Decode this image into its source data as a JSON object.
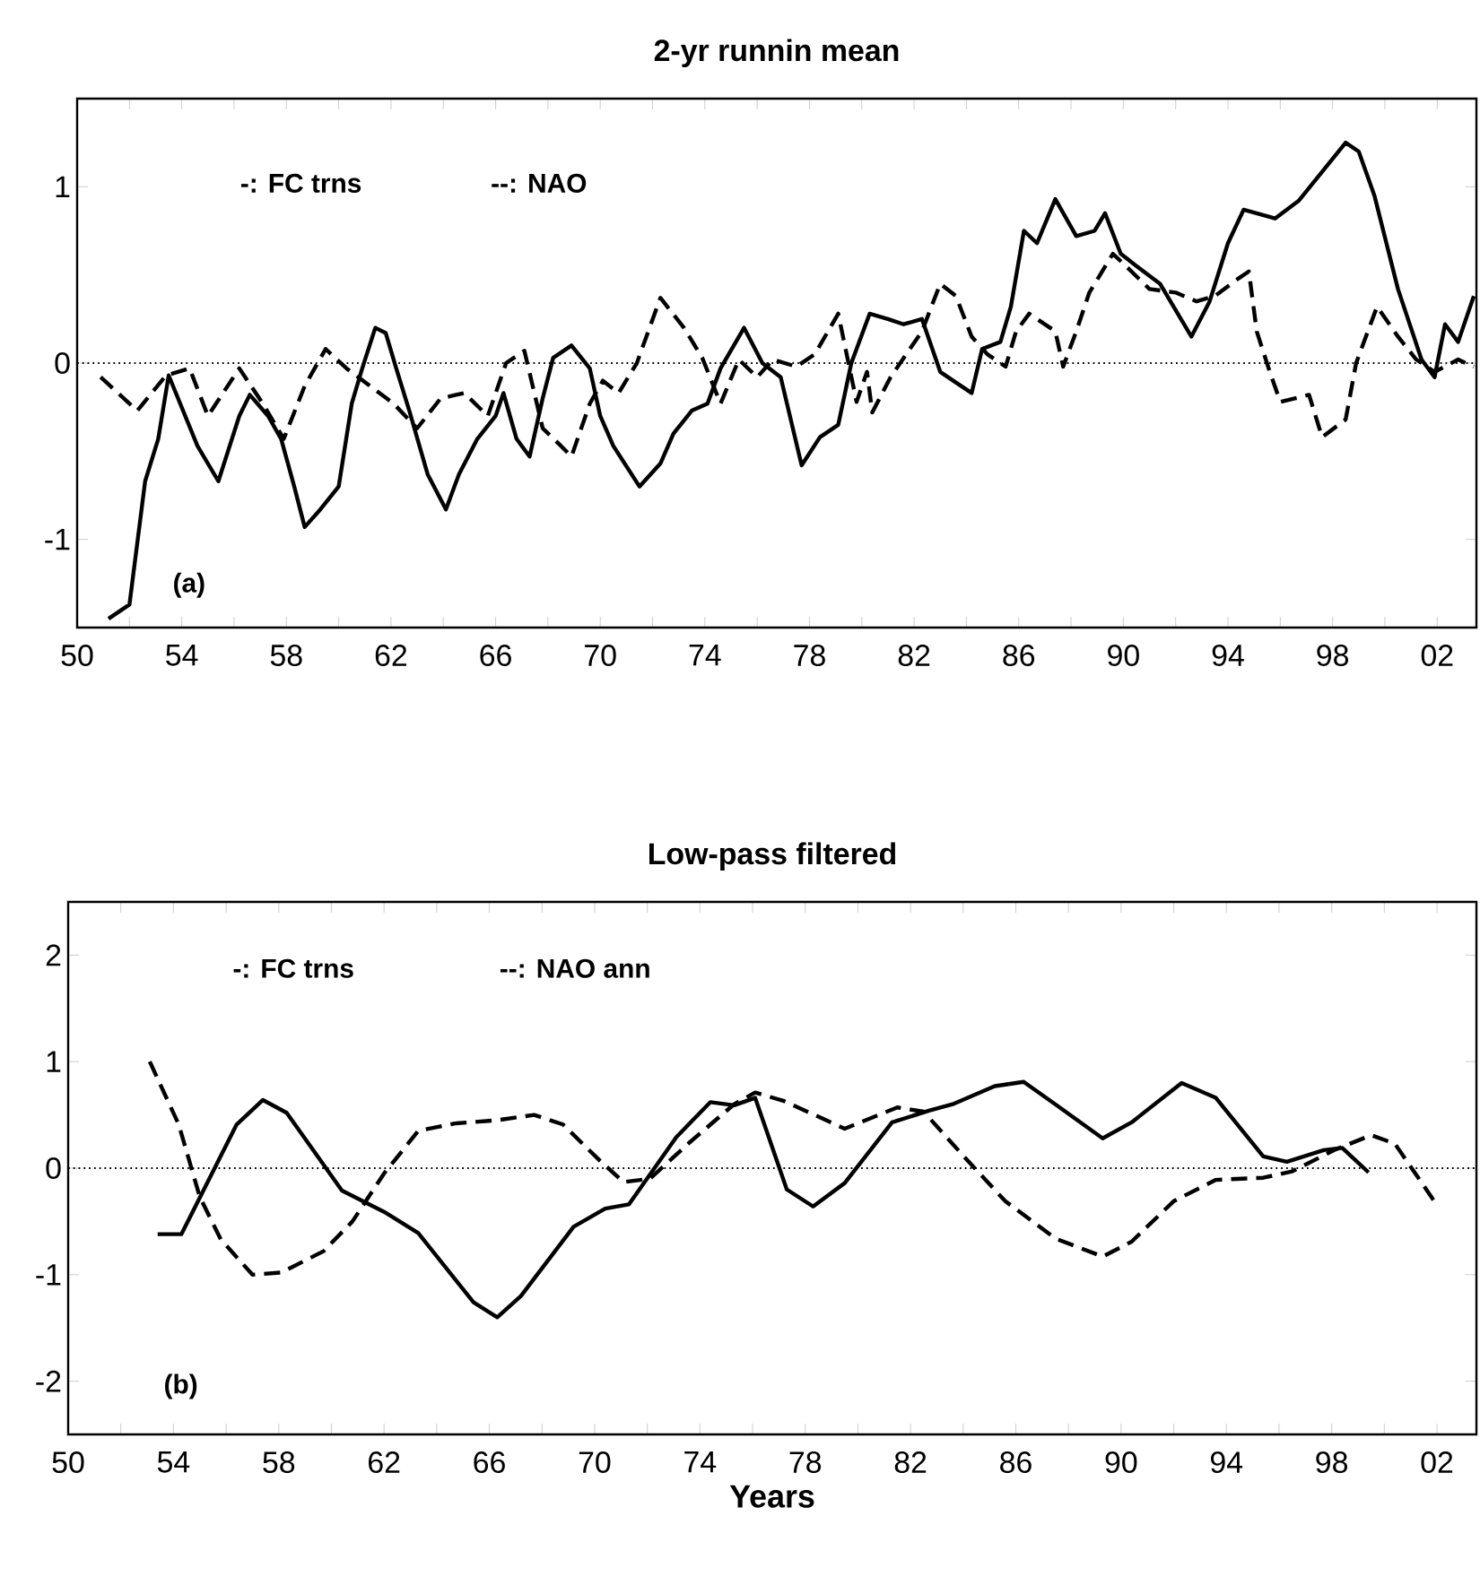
{
  "chart_data": [
    {
      "type": "line",
      "title": "2-yr runnin mean",
      "xlim": [
        1950,
        2003.5
      ],
      "ylim": [
        -1.5,
        1.5
      ],
      "yticks": [
        -1,
        0,
        1
      ],
      "xticks": [
        {
          "value": 1950,
          "label": "50"
        },
        {
          "value": 1952,
          "label": null
        },
        {
          "value": 1954,
          "label": "54"
        },
        {
          "value": 1956,
          "label": null
        },
        {
          "value": 1958,
          "label": "58"
        },
        {
          "value": 1960,
          "label": null
        },
        {
          "value": 1962,
          "label": "62"
        },
        {
          "value": 1964,
          "label": null
        },
        {
          "value": 1966,
          "label": "66"
        },
        {
          "value": 1968,
          "label": null
        },
        {
          "value": 1970,
          "label": "70"
        },
        {
          "value": 1972,
          "label": null
        },
        {
          "value": 1974,
          "label": "74"
        },
        {
          "value": 1976,
          "label": null
        },
        {
          "value": 1978,
          "label": "78"
        },
        {
          "value": 1980,
          "label": null
        },
        {
          "value": 1982,
          "label": "82"
        },
        {
          "value": 1984,
          "label": null
        },
        {
          "value": 1986,
          "label": "86"
        },
        {
          "value": 1988,
          "label": null
        },
        {
          "value": 1990,
          "label": "90"
        },
        {
          "value": 1992,
          "label": null
        },
        {
          "value": 1994,
          "label": "94"
        },
        {
          "value": 1996,
          "label": null
        },
        {
          "value": 1998,
          "label": "98"
        },
        {
          "value": 2000,
          "label": null
        },
        {
          "value": 2002,
          "label": "02"
        }
      ],
      "annotations": [
        "-: FC trns",
        "--: NAO",
        "(a)"
      ],
      "ref_lines": [
        {
          "axis": "y",
          "value": 0,
          "color": "#000000",
          "line_style": "dotted"
        }
      ],
      "series": [
        {
          "color": "#000000",
          "line_style": "solid",
          "x": [
            1951.2,
            1952.0,
            1952.6,
            1953.1,
            1953.5,
            1954.6,
            1955.4,
            1956.2,
            1956.6,
            1957.3,
            1957.8,
            1958.3,
            1958.7,
            1959.3,
            1960.0,
            1960.5,
            1960.9,
            1961.4,
            1961.8,
            1962.2,
            1962.7,
            1963.4,
            1964.1,
            1964.6,
            1965.3,
            1966.0,
            1966.3,
            1966.8,
            1967.3,
            1967.8,
            1968.2,
            1968.9,
            1969.6,
            1970.0,
            1970.5,
            1971.5,
            1972.3,
            1972.8,
            1973.5,
            1974.1,
            1974.6,
            1975.5,
            1976.2,
            1976.9,
            1977.7,
            1978.4,
            1979.1,
            1979.6,
            1980.3,
            1981.0,
            1981.6,
            1982.3,
            1983.0,
            1983.7,
            1984.2,
            1984.6,
            1985.3,
            1985.7,
            1986.2,
            1986.7,
            1987.4,
            1988.2,
            1988.9,
            1989.3,
            1989.9,
            1990.5,
            1991.4,
            1992.6,
            1993.3,
            1994.0,
            1994.6,
            1995.8,
            1996.7,
            1998.5,
            1999.0,
            1999.6,
            2000.5,
            2001.4,
            2001.9,
            2002.3,
            2002.8,
            2003.4
          ],
          "values": [
            -1.45,
            -1.37,
            -0.67,
            -0.43,
            -0.07,
            -0.47,
            -0.67,
            -0.3,
            -0.18,
            -0.3,
            -0.43,
            -0.7,
            -0.93,
            -0.83,
            -0.7,
            -0.23,
            -0.03,
            0.2,
            0.17,
            -0.03,
            -0.27,
            -0.63,
            -0.83,
            -0.63,
            -0.43,
            -0.3,
            -0.17,
            -0.43,
            -0.53,
            -0.2,
            0.03,
            0.1,
            -0.03,
            -0.3,
            -0.47,
            -0.7,
            -0.57,
            -0.4,
            -0.27,
            -0.23,
            -0.03,
            0.2,
            0.0,
            -0.08,
            -0.58,
            -0.42,
            -0.35,
            0.0,
            0.28,
            0.25,
            0.22,
            0.25,
            -0.05,
            -0.12,
            -0.17,
            0.08,
            0.12,
            0.32,
            0.75,
            0.68,
            0.93,
            0.72,
            0.75,
            0.85,
            0.62,
            0.55,
            0.45,
            0.15,
            0.35,
            0.68,
            0.87,
            0.82,
            0.92,
            1.25,
            1.2,
            0.95,
            0.42,
            0.02,
            -0.08,
            0.22,
            0.12,
            0.38
          ]
        },
        {
          "color": "#000000",
          "line_style": "dashed",
          "x": [
            1950.9,
            1952.3,
            1953.4,
            1954.3,
            1955.0,
            1956.2,
            1957.1,
            1957.9,
            1958.7,
            1959.5,
            1960.3,
            1961.2,
            1962.1,
            1963.0,
            1963.9,
            1964.8,
            1965.7,
            1966.4,
            1967.1,
            1967.8,
            1968.5,
            1968.9,
            1969.6,
            1970.1,
            1970.7,
            1971.4,
            1972.3,
            1973.2,
            1973.9,
            1974.6,
            1975.3,
            1976.0,
            1976.6,
            1977.5,
            1978.2,
            1979.1,
            1979.8,
            1980.2,
            1980.4,
            1981.1,
            1982.3,
            1983.0,
            1983.6,
            1984.2,
            1984.8,
            1985.5,
            1985.9,
            1986.4,
            1987.4,
            1987.7,
            1988.2,
            1988.7,
            1989.6,
            1990.1,
            1991.0,
            1992.0,
            1992.8,
            1993.5,
            1994.4,
            1994.8,
            1995.1,
            1995.6,
            1996.0,
            1997.1,
            1997.6,
            1998.5,
            1998.9,
            1999.7,
            2000.5,
            2001.2,
            2001.9,
            2002.8,
            2003.4
          ],
          "values": [
            -0.08,
            -0.27,
            -0.07,
            -0.03,
            -0.3,
            -0.03,
            -0.23,
            -0.43,
            -0.13,
            0.08,
            -0.03,
            -0.13,
            -0.23,
            -0.37,
            -0.2,
            -0.17,
            -0.3,
            0.0,
            0.07,
            -0.37,
            -0.47,
            -0.53,
            -0.23,
            -0.1,
            -0.17,
            0.0,
            0.37,
            0.2,
            0.03,
            -0.23,
            0.02,
            -0.08,
            0.02,
            -0.02,
            0.05,
            0.28,
            -0.22,
            -0.05,
            -0.28,
            -0.08,
            0.18,
            0.45,
            0.38,
            0.15,
            0.05,
            -0.02,
            0.18,
            0.28,
            0.18,
            -0.02,
            0.18,
            0.4,
            0.62,
            0.55,
            0.42,
            0.4,
            0.35,
            0.38,
            0.48,
            0.52,
            0.18,
            -0.05,
            -0.22,
            -0.18,
            -0.42,
            -0.32,
            0.0,
            0.32,
            0.15,
            0.02,
            -0.05,
            0.02,
            -0.02
          ]
        }
      ]
    },
    {
      "type": "line",
      "title": "Low-pass filtered",
      "xlabel": "Years",
      "xlim": [
        1950,
        2003.5
      ],
      "ylim": [
        -2.5,
        2.5
      ],
      "yticks": [
        -2,
        -1,
        0,
        1,
        2
      ],
      "xticks": [
        {
          "value": 1950,
          "label": "50"
        },
        {
          "value": 1952,
          "label": null
        },
        {
          "value": 1954,
          "label": "54"
        },
        {
          "value": 1956,
          "label": null
        },
        {
          "value": 1958,
          "label": "58"
        },
        {
          "value": 1960,
          "label": null
        },
        {
          "value": 1962,
          "label": "62"
        },
        {
          "value": 1964,
          "label": null
        },
        {
          "value": 1966,
          "label": "66"
        },
        {
          "value": 1968,
          "label": null
        },
        {
          "value": 1970,
          "label": "70"
        },
        {
          "value": 1972,
          "label": null
        },
        {
          "value": 1974,
          "label": "74"
        },
        {
          "value": 1976,
          "label": null
        },
        {
          "value": 1978,
          "label": "78"
        },
        {
          "value": 1980,
          "label": null
        },
        {
          "value": 1982,
          "label": "82"
        },
        {
          "value": 1984,
          "label": null
        },
        {
          "value": 1986,
          "label": "86"
        },
        {
          "value": 1988,
          "label": null
        },
        {
          "value": 1990,
          "label": "90"
        },
        {
          "value": 1992,
          "label": null
        },
        {
          "value": 1994,
          "label": "94"
        },
        {
          "value": 1996,
          "label": null
        },
        {
          "value": 1998,
          "label": "98"
        },
        {
          "value": 2000,
          "label": null
        },
        {
          "value": 2002,
          "label": "02"
        }
      ],
      "annotations": [
        "-: FC trns",
        "--: NAO ann",
        "(b)"
      ],
      "ref_lines": [
        {
          "axis": "y",
          "value": 0,
          "color": "#000000",
          "line_style": "dotted"
        }
      ],
      "series": [
        {
          "color": "#000000",
          "line_style": "solid",
          "x": [
            1953.4,
            1954.3,
            1956.4,
            1957.4,
            1958.3,
            1960.4,
            1962.0,
            1963.3,
            1965.4,
            1966.3,
            1967.2,
            1969.2,
            1970.4,
            1971.3,
            1973.1,
            1974.4,
            1975.3,
            1976.1,
            1977.3,
            1978.3,
            1979.5,
            1981.3,
            1982.7,
            1983.6,
            1985.2,
            1986.3,
            1987.5,
            1989.3,
            1990.4,
            1992.3,
            1993.6,
            1995.4,
            1996.3,
            1997.7,
            1998.4,
            1999.4
          ],
          "values": [
            -0.62,
            -0.62,
            0.41,
            0.64,
            0.52,
            -0.21,
            -0.41,
            -0.61,
            -1.26,
            -1.4,
            -1.2,
            -0.55,
            -0.38,
            -0.34,
            0.29,
            0.62,
            0.59,
            0.66,
            -0.2,
            -0.36,
            -0.14,
            0.43,
            0.54,
            0.6,
            0.77,
            0.81,
            0.6,
            0.28,
            0.43,
            0.8,
            0.66,
            0.11,
            0.06,
            0.17,
            0.19,
            -0.04
          ]
        },
        {
          "color": "#000000",
          "line_style": "dashed",
          "x": [
            1953.1,
            1954.2,
            1955.0,
            1955.8,
            1957.0,
            1958.1,
            1959.7,
            1960.8,
            1962.0,
            1963.3,
            1964.7,
            1966.3,
            1967.7,
            1968.8,
            1970.2,
            1971.1,
            1972.1,
            1973.6,
            1975.3,
            1976.1,
            1977.2,
            1979.5,
            1981.5,
            1982.5,
            1984.1,
            1985.6,
            1987.5,
            1989.3,
            1990.4,
            1992.0,
            1993.6,
            1995.4,
            1996.5,
            1998.1,
            1999.5,
            2000.4,
            2001.9
          ],
          "values": [
            1.0,
            0.41,
            -0.27,
            -0.67,
            -1.0,
            -0.98,
            -0.78,
            -0.5,
            -0.05,
            0.35,
            0.42,
            0.45,
            0.5,
            0.41,
            0.07,
            -0.13,
            -0.1,
            0.24,
            0.6,
            0.71,
            0.63,
            0.37,
            0.57,
            0.53,
            0.09,
            -0.31,
            -0.66,
            -0.83,
            -0.69,
            -0.31,
            -0.11,
            -0.09,
            -0.03,
            0.17,
            0.31,
            0.23,
            -0.31
          ]
        }
      ]
    }
  ]
}
